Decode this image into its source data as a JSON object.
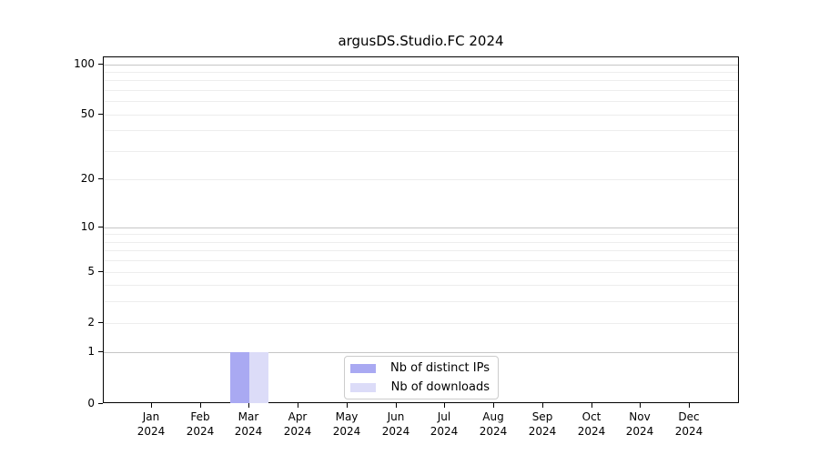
{
  "chart_data": {
    "type": "bar",
    "title": "argusDS.Studio.FC 2024",
    "categories": [
      "Jan",
      "Feb",
      "Mar",
      "Apr",
      "May",
      "Jun",
      "Jul",
      "Aug",
      "Sep",
      "Oct",
      "Nov",
      "Dec"
    ],
    "category_year": "2024",
    "series": [
      {
        "name": "Nb of distinct IPs",
        "color": "#a9a9f2",
        "values": [
          0,
          0,
          1,
          0,
          0,
          0,
          0,
          0,
          0,
          0,
          0,
          0
        ]
      },
      {
        "name": "Nb of downloads",
        "color": "#dcdcf8",
        "values": [
          0,
          0,
          1,
          0,
          0,
          0,
          0,
          0,
          0,
          0,
          0,
          0
        ]
      }
    ],
    "yscale": "log1p",
    "ylim": [
      0,
      110
    ],
    "yticks": [
      0,
      1,
      2,
      5,
      10,
      20,
      50,
      100
    ],
    "minor_yticks": [
      3,
      4,
      6,
      7,
      8,
      9,
      30,
      40,
      60,
      70,
      80,
      90
    ],
    "major_grid_values": [
      1,
      10,
      100
    ],
    "grid": true,
    "legend_position": "lower center",
    "style": {
      "major_grid_color": "#c6c6c6",
      "minor_grid_color": "#ededed",
      "axis_color": "#000000",
      "text_color": "#000000",
      "legend_border_color": "#cccccc"
    }
  }
}
